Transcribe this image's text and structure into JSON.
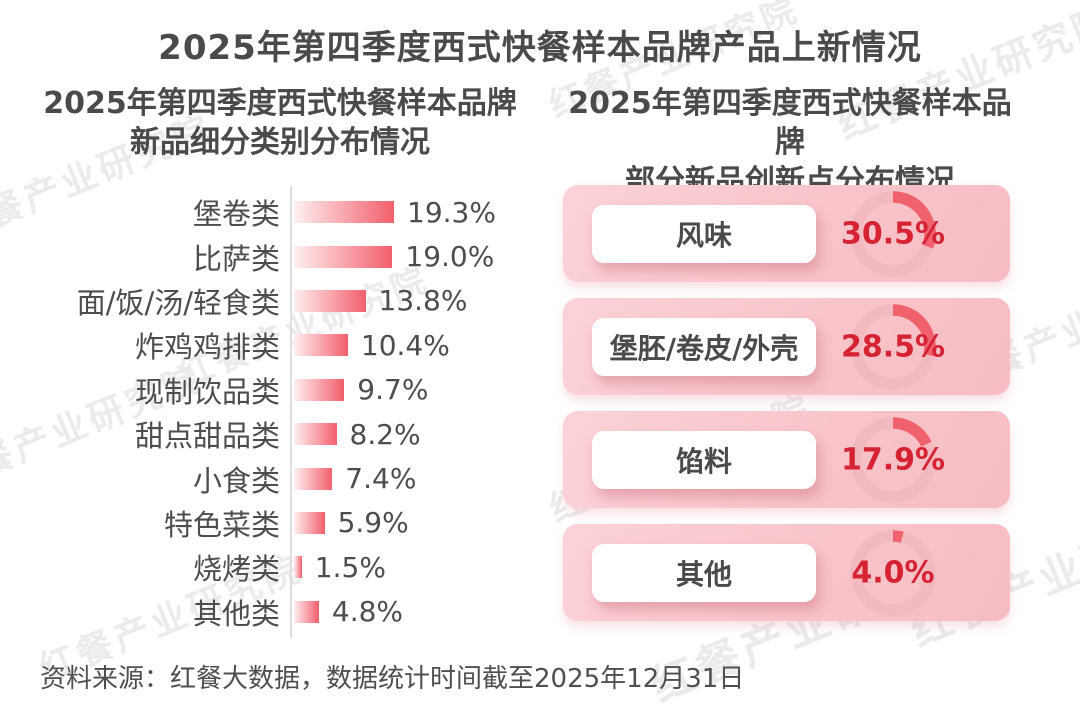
{
  "page": {
    "title": "2025年第四季度西式快餐样本品牌产品上新情况",
    "source_note": "资料来源：红餐大数据，数据统计时间截至2025年12月31日",
    "watermark_text": "红餐产业研究院"
  },
  "colors": {
    "title_text": "#4a4a4a",
    "label_text": "#4d4d4d",
    "percent_red": "#d62334",
    "bar_gradient_start": "#feefef",
    "bar_gradient_end": "#f15f6c",
    "card_background": "#f8c3c9",
    "donut_track": "#f3b9c0",
    "donut_arc": "#f0616e",
    "axis_line": "#dedede",
    "watermark": "#ebebeb"
  },
  "chart_data": [
    {
      "type": "bar",
      "orientation": "horizontal",
      "title": "2025年第四季度西式快餐样本品牌新品细分类别分布情况",
      "title_lines": [
        "2025年第四季度西式快餐样本品牌",
        "新品细分类别分布情况"
      ],
      "categories": [
        "堡卷类",
        "比萨类",
        "面/饭/汤/轻食类",
        "炸鸡鸡排类",
        "现制饮品类",
        "甜点甜品类",
        "小食类",
        "特色菜类",
        "烧烤类",
        "其他类"
      ],
      "values": [
        19.3,
        19.0,
        13.8,
        10.4,
        9.7,
        8.2,
        7.4,
        5.9,
        1.5,
        4.8
      ],
      "value_labels": [
        "19.3%",
        "19.0%",
        "13.8%",
        "10.4%",
        "9.7%",
        "8.2%",
        "7.4%",
        "5.9%",
        "1.5%",
        "4.8%"
      ],
      "unit": "%",
      "xlim": [
        0,
        20
      ],
      "grid": false,
      "legend": false
    },
    {
      "type": "pie",
      "subtype": "donut-card-list",
      "title": "2025年第四季度西式快餐样本品牌部分新品创新点分布情况",
      "title_lines": [
        "2025年第四季度西式快餐样本品牌",
        "部分新品创新点分布情况"
      ],
      "categories": [
        "风味",
        "堡胚/卷皮/外壳",
        "馅料",
        "其他"
      ],
      "values": [
        30.5,
        28.5,
        17.9,
        4.0
      ],
      "value_labels": [
        "30.5%",
        "28.5%",
        "17.9%",
        "4.0%"
      ],
      "unit": "%",
      "donut_start_angle_deg": 0,
      "donut_direction": "clockwise",
      "legend": false
    }
  ]
}
